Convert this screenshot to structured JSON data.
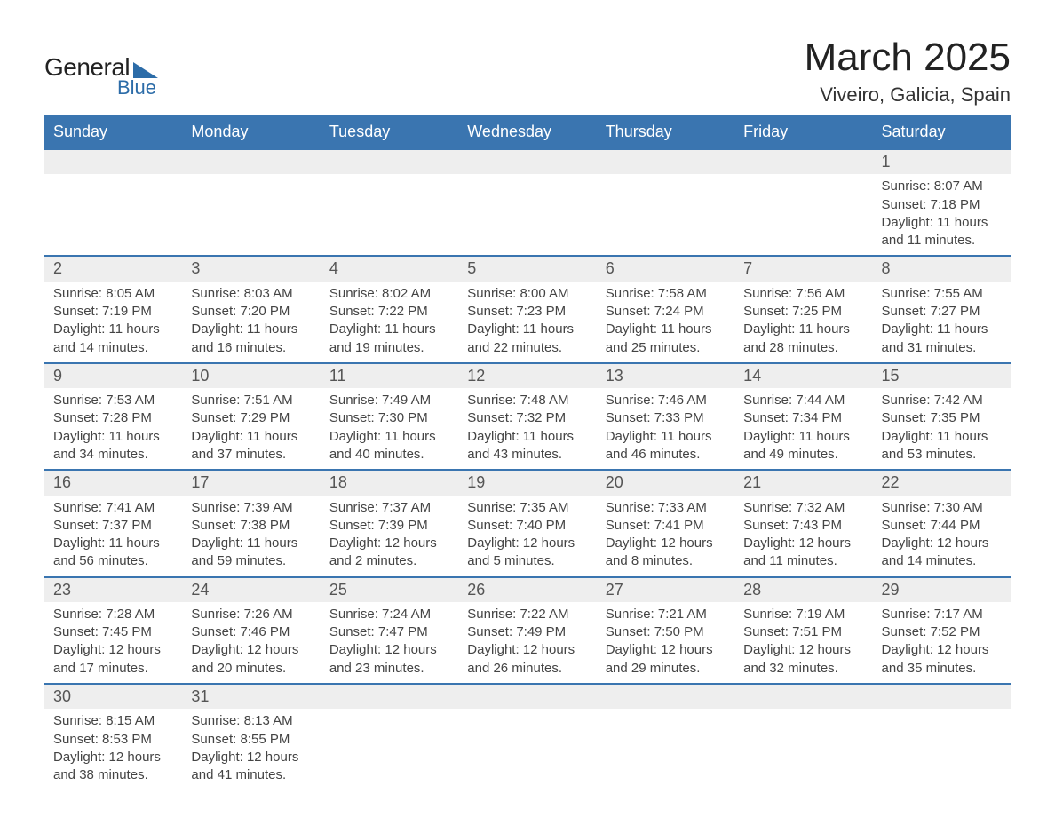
{
  "logo": {
    "main": "General",
    "sub": "Blue"
  },
  "title": "March 2025",
  "location": "Viveiro, Galicia, Spain",
  "colors": {
    "header_bg": "#3a75b0",
    "header_text": "#ffffff",
    "daynum_bg": "#eeeeee",
    "row_divider": "#3a75b0",
    "text": "#333333",
    "brand": "#2c6ca8"
  },
  "typography": {
    "title_fontsize": 44,
    "location_fontsize": 22,
    "header_fontsize": 18,
    "daynum_fontsize": 18,
    "detail_fontsize": 15
  },
  "layout": {
    "columns": 7,
    "rows": 6
  },
  "weekdays": [
    "Sunday",
    "Monday",
    "Tuesday",
    "Wednesday",
    "Thursday",
    "Friday",
    "Saturday"
  ],
  "weeks": [
    [
      null,
      null,
      null,
      null,
      null,
      null,
      {
        "day": 1,
        "sunrise": "8:07 AM",
        "sunset": "7:18 PM",
        "daylight": "11 hours and 11 minutes."
      }
    ],
    [
      {
        "day": 2,
        "sunrise": "8:05 AM",
        "sunset": "7:19 PM",
        "daylight": "11 hours and 14 minutes."
      },
      {
        "day": 3,
        "sunrise": "8:03 AM",
        "sunset": "7:20 PM",
        "daylight": "11 hours and 16 minutes."
      },
      {
        "day": 4,
        "sunrise": "8:02 AM",
        "sunset": "7:22 PM",
        "daylight": "11 hours and 19 minutes."
      },
      {
        "day": 5,
        "sunrise": "8:00 AM",
        "sunset": "7:23 PM",
        "daylight": "11 hours and 22 minutes."
      },
      {
        "day": 6,
        "sunrise": "7:58 AM",
        "sunset": "7:24 PM",
        "daylight": "11 hours and 25 minutes."
      },
      {
        "day": 7,
        "sunrise": "7:56 AM",
        "sunset": "7:25 PM",
        "daylight": "11 hours and 28 minutes."
      },
      {
        "day": 8,
        "sunrise": "7:55 AM",
        "sunset": "7:27 PM",
        "daylight": "11 hours and 31 minutes."
      }
    ],
    [
      {
        "day": 9,
        "sunrise": "7:53 AM",
        "sunset": "7:28 PM",
        "daylight": "11 hours and 34 minutes."
      },
      {
        "day": 10,
        "sunrise": "7:51 AM",
        "sunset": "7:29 PM",
        "daylight": "11 hours and 37 minutes."
      },
      {
        "day": 11,
        "sunrise": "7:49 AM",
        "sunset": "7:30 PM",
        "daylight": "11 hours and 40 minutes."
      },
      {
        "day": 12,
        "sunrise": "7:48 AM",
        "sunset": "7:32 PM",
        "daylight": "11 hours and 43 minutes."
      },
      {
        "day": 13,
        "sunrise": "7:46 AM",
        "sunset": "7:33 PM",
        "daylight": "11 hours and 46 minutes."
      },
      {
        "day": 14,
        "sunrise": "7:44 AM",
        "sunset": "7:34 PM",
        "daylight": "11 hours and 49 minutes."
      },
      {
        "day": 15,
        "sunrise": "7:42 AM",
        "sunset": "7:35 PM",
        "daylight": "11 hours and 53 minutes."
      }
    ],
    [
      {
        "day": 16,
        "sunrise": "7:41 AM",
        "sunset": "7:37 PM",
        "daylight": "11 hours and 56 minutes."
      },
      {
        "day": 17,
        "sunrise": "7:39 AM",
        "sunset": "7:38 PM",
        "daylight": "11 hours and 59 minutes."
      },
      {
        "day": 18,
        "sunrise": "7:37 AM",
        "sunset": "7:39 PM",
        "daylight": "12 hours and 2 minutes."
      },
      {
        "day": 19,
        "sunrise": "7:35 AM",
        "sunset": "7:40 PM",
        "daylight": "12 hours and 5 minutes."
      },
      {
        "day": 20,
        "sunrise": "7:33 AM",
        "sunset": "7:41 PM",
        "daylight": "12 hours and 8 minutes."
      },
      {
        "day": 21,
        "sunrise": "7:32 AM",
        "sunset": "7:43 PM",
        "daylight": "12 hours and 11 minutes."
      },
      {
        "day": 22,
        "sunrise": "7:30 AM",
        "sunset": "7:44 PM",
        "daylight": "12 hours and 14 minutes."
      }
    ],
    [
      {
        "day": 23,
        "sunrise": "7:28 AM",
        "sunset": "7:45 PM",
        "daylight": "12 hours and 17 minutes."
      },
      {
        "day": 24,
        "sunrise": "7:26 AM",
        "sunset": "7:46 PM",
        "daylight": "12 hours and 20 minutes."
      },
      {
        "day": 25,
        "sunrise": "7:24 AM",
        "sunset": "7:47 PM",
        "daylight": "12 hours and 23 minutes."
      },
      {
        "day": 26,
        "sunrise": "7:22 AM",
        "sunset": "7:49 PM",
        "daylight": "12 hours and 26 minutes."
      },
      {
        "day": 27,
        "sunrise": "7:21 AM",
        "sunset": "7:50 PM",
        "daylight": "12 hours and 29 minutes."
      },
      {
        "day": 28,
        "sunrise": "7:19 AM",
        "sunset": "7:51 PM",
        "daylight": "12 hours and 32 minutes."
      },
      {
        "day": 29,
        "sunrise": "7:17 AM",
        "sunset": "7:52 PM",
        "daylight": "12 hours and 35 minutes."
      }
    ],
    [
      {
        "day": 30,
        "sunrise": "8:15 AM",
        "sunset": "8:53 PM",
        "daylight": "12 hours and 38 minutes."
      },
      {
        "day": 31,
        "sunrise": "8:13 AM",
        "sunset": "8:55 PM",
        "daylight": "12 hours and 41 minutes."
      },
      null,
      null,
      null,
      null,
      null
    ]
  ],
  "labels": {
    "sunrise": "Sunrise:",
    "sunset": "Sunset:",
    "daylight": "Daylight:"
  }
}
